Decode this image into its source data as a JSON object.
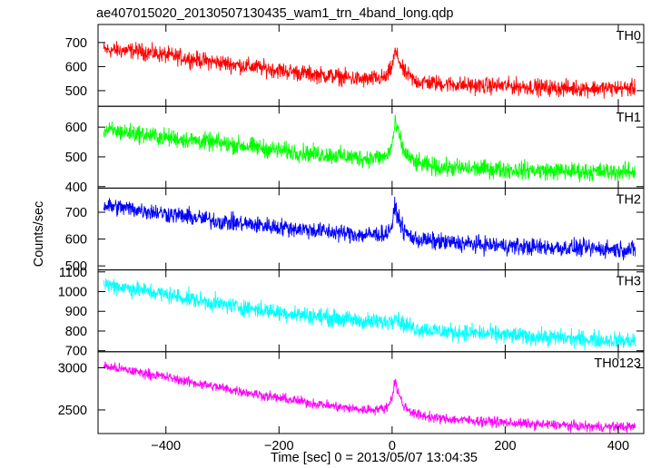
{
  "chart_data": {
    "type": "line",
    "title": "ae407015020_20130507130435_wam1_trn_4band_long.qdp",
    "xlabel": "Time [sec] 0 = 2013/05/07 13:04:35",
    "ylabel": "Counts/sec",
    "xlim": [
      -520,
      445
    ],
    "x_ticks": [
      -400,
      -200,
      0,
      200,
      400
    ],
    "x_tick_labels": [
      "−400",
      "−200",
      "0",
      "200",
      "400"
    ],
    "panels": [
      {
        "name": "TH0",
        "color": "#ff0000",
        "ylim": [
          435,
          775
        ],
        "y_ticks": [
          500,
          600,
          700
        ],
        "y_tick_labels": [
          "500",
          "600",
          "700"
        ],
        "x": [
          -510,
          -450,
          -400,
          -350,
          -300,
          -250,
          -200,
          -150,
          -100,
          -50,
          -10,
          0,
          5,
          10,
          20,
          40,
          80,
          150,
          200,
          250,
          300,
          350,
          400,
          430
        ],
        "y": [
          670,
          665,
          648,
          630,
          615,
          600,
          585,
          570,
          560,
          545,
          555,
          600,
          660,
          640,
          580,
          540,
          530,
          520,
          520,
          515,
          510,
          510,
          510,
          510
        ],
        "noise": 32
      },
      {
        "name": "TH1",
        "color": "#00ff00",
        "ylim": [
          395,
          670
        ],
        "y_ticks": [
          400,
          500,
          600
        ],
        "y_tick_labels": [
          "400",
          "500",
          "600"
        ],
        "x": [
          -510,
          -450,
          -400,
          -350,
          -300,
          -250,
          -200,
          -150,
          -100,
          -50,
          -10,
          0,
          5,
          10,
          20,
          40,
          80,
          150,
          200,
          250,
          300,
          350,
          400,
          430
        ],
        "y": [
          590,
          578,
          565,
          555,
          545,
          535,
          522,
          512,
          505,
          495,
          500,
          540,
          610,
          590,
          520,
          480,
          465,
          460,
          458,
          455,
          452,
          450,
          450,
          450
        ],
        "noise": 28
      },
      {
        "name": "TH2",
        "color": "#0000ff",
        "ylim": [
          485,
          790
        ],
        "y_ticks": [
          500,
          600,
          700
        ],
        "y_tick_labels": [
          "500",
          "600",
          "700"
        ],
        "x": [
          -510,
          -450,
          -400,
          -350,
          -300,
          -250,
          -200,
          -150,
          -100,
          -50,
          -10,
          0,
          5,
          10,
          20,
          40,
          80,
          150,
          200,
          250,
          300,
          350,
          400,
          430
        ],
        "y": [
          725,
          710,
          695,
          680,
          665,
          655,
          645,
          635,
          625,
          615,
          620,
          650,
          720,
          690,
          630,
          600,
          590,
          580,
          575,
          570,
          568,
          565,
          562,
          560
        ],
        "noise": 30
      },
      {
        "name": "TH3",
        "color": "#00ffff",
        "ylim": [
          695,
          1110
        ],
        "y_ticks": [
          700,
          800,
          900,
          1000,
          1100
        ],
        "y_tick_labels": [
          "700",
          "800",
          "900",
          "1000",
          "1100"
        ],
        "x": [
          -510,
          -450,
          -400,
          -350,
          -300,
          -250,
          -200,
          -150,
          -100,
          -50,
          -10,
          0,
          5,
          10,
          20,
          40,
          80,
          150,
          200,
          250,
          300,
          350,
          400,
          430
        ],
        "y": [
          1040,
          1010,
          985,
          960,
          935,
          915,
          895,
          880,
          865,
          850,
          845,
          860,
          880,
          860,
          835,
          815,
          800,
          790,
          780,
          772,
          765,
          758,
          752,
          750
        ],
        "noise": 40
      },
      {
        "name": "TH0123",
        "color": "#ff00ff",
        "ylim": [
          2220,
          3190
        ],
        "y_ticks": [
          2500,
          3000
        ],
        "y_tick_labels": [
          "2500",
          "3000"
        ],
        "x": [
          -510,
          -450,
          -400,
          -350,
          -300,
          -250,
          -200,
          -150,
          -100,
          -50,
          -10,
          0,
          5,
          10,
          20,
          40,
          80,
          150,
          200,
          250,
          300,
          350,
          400,
          430
        ],
        "y": [
          3020,
          2950,
          2890,
          2820,
          2760,
          2700,
          2640,
          2590,
          2540,
          2500,
          2520,
          2650,
          2850,
          2720,
          2550,
          2450,
          2400,
          2370,
          2350,
          2330,
          2320,
          2300,
          2300,
          2300
        ],
        "noise": 55
      }
    ]
  }
}
